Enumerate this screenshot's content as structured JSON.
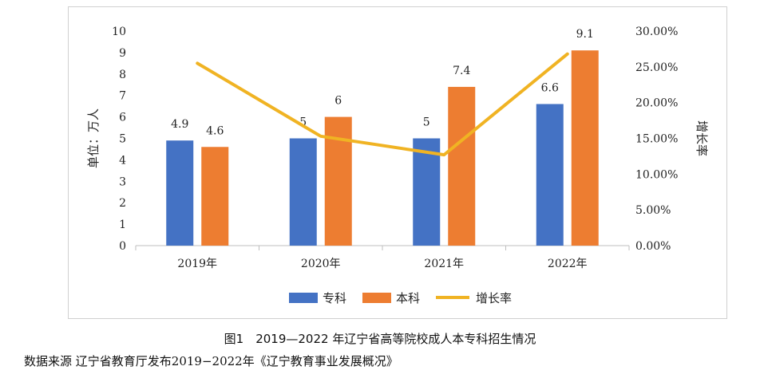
{
  "chart_data": {
    "type": "bar",
    "categories": [
      "2019年",
      "2020年",
      "2021年",
      "2022年"
    ],
    "series": [
      {
        "name": "专科",
        "kind": "bar",
        "axis": "left",
        "color": "#4472C4",
        "values": [
          4.9,
          5,
          5,
          6.6
        ],
        "labels": [
          "4.9",
          "5",
          "5",
          "6.6"
        ]
      },
      {
        "name": "本科",
        "kind": "bar",
        "axis": "left",
        "color": "#ED7D31",
        "values": [
          4.6,
          6,
          7.4,
          9.1
        ],
        "labels": [
          "4.6",
          "6",
          "7.4",
          "9.1"
        ]
      },
      {
        "name": "增长率",
        "kind": "line",
        "axis": "right",
        "color": "#F0B323",
        "values": [
          25.5,
          15.3,
          12.7,
          26.8
        ]
      }
    ],
    "ylabel": "单位：万人",
    "ylabel_right": "增长率",
    "ylim": [
      0,
      10
    ],
    "ylim_right": [
      0,
      30
    ],
    "yticks": [
      "0",
      "1",
      "2",
      "3",
      "4",
      "5",
      "6",
      "7",
      "8",
      "9",
      "10"
    ],
    "yticks_right": [
      "0.00%",
      "5.00%",
      "10.00%",
      "15.00%",
      "20.00%",
      "25.00%",
      "30.00%"
    ],
    "grid": false,
    "legend": "bottom"
  },
  "caption": "图1　2019—2022 年辽宁省高等院校成人本专科招生情况",
  "source_prefix": "数据来源  辽宁省教育厅发布",
  "source_years": "2019−2022",
  "source_suffix": "年《辽宁教育事业发展概况》"
}
